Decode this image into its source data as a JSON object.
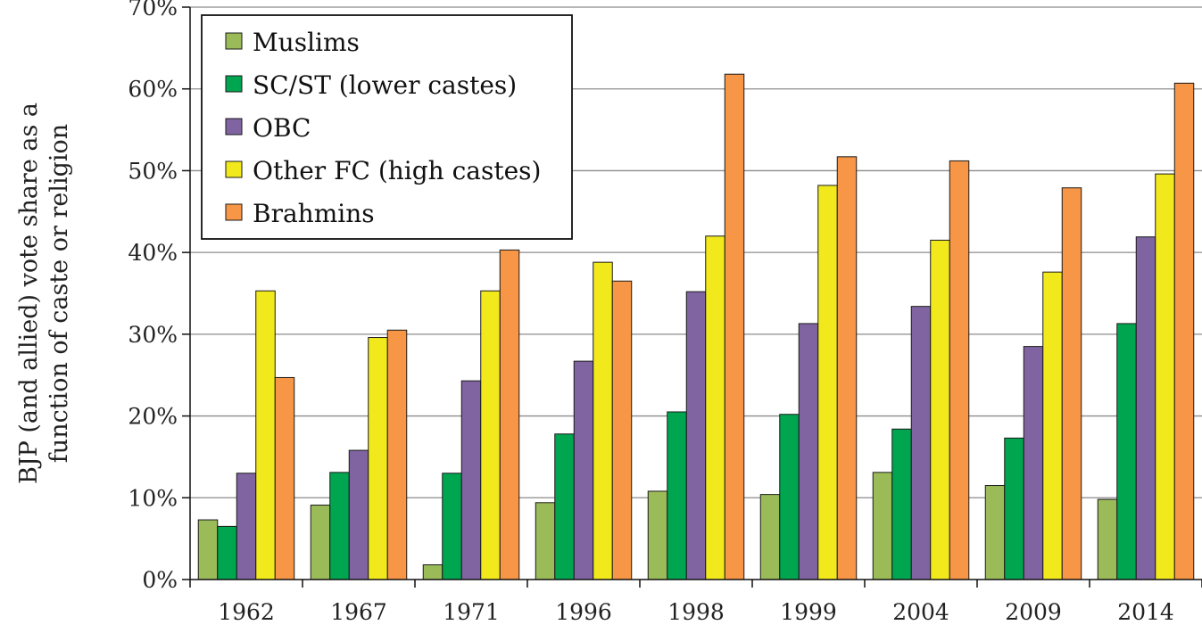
{
  "chart_data": {
    "type": "bar",
    "title": "",
    "xlabel": "",
    "ylabel_lines": [
      "BJP (and allied) vote share as a",
      "function of caste or religion"
    ],
    "categories": [
      "1962",
      "1967",
      "1971",
      "1996",
      "1998",
      "1999",
      "2004",
      "2009",
      "2014"
    ],
    "ylim": [
      0,
      70
    ],
    "yticks": [
      0,
      10,
      20,
      30,
      40,
      50,
      60,
      70
    ],
    "ytick_labels": [
      "0%",
      "10%",
      "20%",
      "30%",
      "40%",
      "50%",
      "60%",
      "70%"
    ],
    "grid": true,
    "legend_position": "top-left",
    "series": [
      {
        "name": "Muslims",
        "color": "#9bbb59",
        "values": [
          7.3,
          9.1,
          1.8,
          9.4,
          10.8,
          10.4,
          13.1,
          11.5,
          9.8
        ]
      },
      {
        "name": "SC/ST (lower castes)",
        "color": "#00a550",
        "values": [
          6.5,
          13.1,
          13.0,
          17.8,
          20.5,
          20.2,
          18.4,
          17.3,
          31.3
        ]
      },
      {
        "name": "OBC",
        "color": "#8064a2",
        "values": [
          13.0,
          15.8,
          24.3,
          26.7,
          35.2,
          31.3,
          33.4,
          28.5,
          41.9
        ]
      },
      {
        "name": "Other FC (high castes)",
        "color": "#f2e91d",
        "values": [
          35.3,
          29.6,
          35.3,
          38.8,
          42.0,
          48.2,
          41.5,
          37.6,
          49.6
        ]
      },
      {
        "name": "Brahmins",
        "color": "#f79646",
        "values": [
          24.7,
          30.5,
          40.3,
          36.5,
          61.8,
          51.7,
          51.2,
          47.9,
          60.7
        ]
      }
    ]
  }
}
